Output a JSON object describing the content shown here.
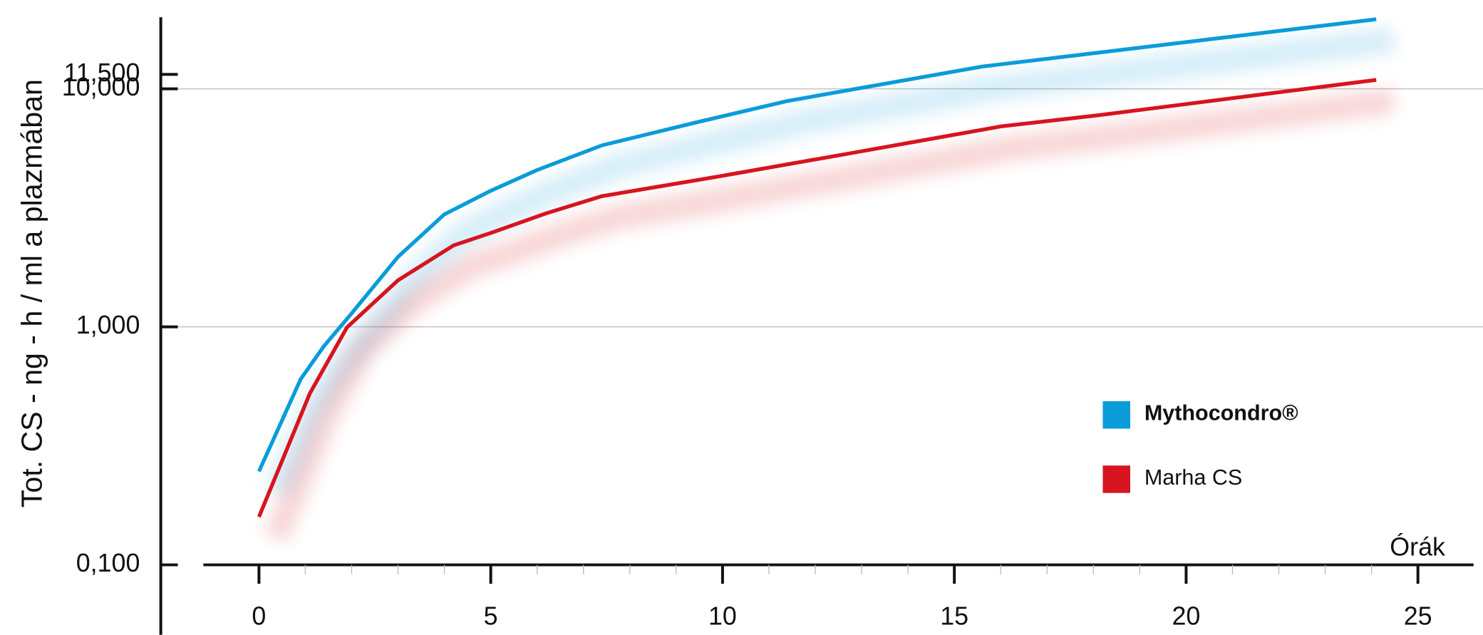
{
  "chart_data": {
    "type": "line",
    "y_label": "Tot. CS - ng - h / ml a plazmában",
    "x_label": "Órák",
    "x": [],
    "series": [
      {
        "name": "Mythocondro®",
        "color": "#0a9cd8",
        "x": [
          0,
          0.9,
          1.4,
          2.0,
          3.0,
          4.0,
          5.0,
          6.0,
          7.4,
          9.4,
          11.4,
          15.6,
          24.1
        ],
        "values": [
          0.247,
          0.603,
          0.829,
          1.14,
          1.97,
          2.97,
          3.73,
          4.56,
          5.79,
          7.2,
          8.89,
          12.4,
          19.6
        ]
      },
      {
        "name": "Marha CS",
        "color": "#d7141f",
        "x": [
          0,
          1.1,
          1.9,
          3.0,
          4.2,
          5.0,
          6.2,
          7.4,
          9.9,
          12.8,
          16.0,
          18.1,
          24.1
        ],
        "values": [
          0.159,
          0.526,
          0.995,
          1.57,
          2.2,
          2.48,
          3.0,
          3.54,
          4.28,
          5.38,
          6.95,
          7.74,
          10.9
        ]
      }
    ],
    "xlim": [
      -1.2,
      26.2
    ],
    "xticks": [
      0,
      5,
      10,
      15,
      20,
      25
    ],
    "ylim": [
      0.1,
      20
    ],
    "yticks": [
      {
        "value": 0.1,
        "label": "0,100"
      },
      {
        "value": 1,
        "label": "1,000"
      },
      {
        "value": 10,
        "label": "10,000"
      },
      {
        "value": 11.5,
        "label": "11,500"
      }
    ],
    "log_y": true,
    "grid": true,
    "legend": "lower right"
  }
}
